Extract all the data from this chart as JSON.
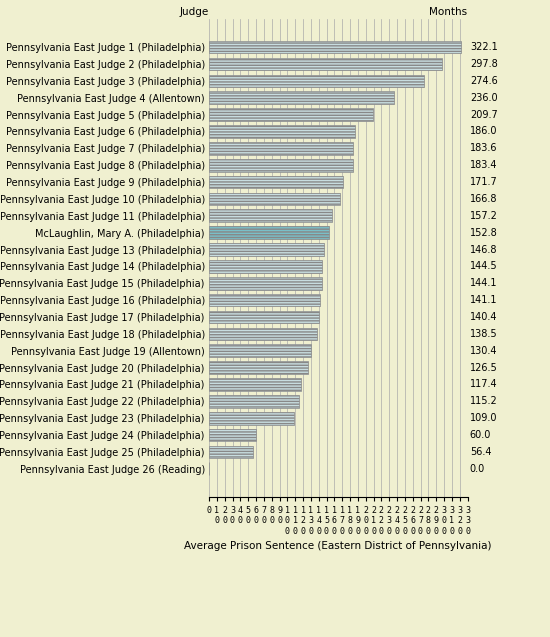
{
  "judges": [
    "Pennsylvania East Judge 1 (Philadelphia)",
    "Pennsylvania East Judge 2 (Philadelphia)",
    "Pennsylvania East Judge 3 (Philadelphia)",
    "Pennsylvania East Judge 4 (Allentown)",
    "Pennsylvania East Judge 5 (Philadelphia)",
    "Pennsylvania East Judge 6 (Philadelphia)",
    "Pennsylvania East Judge 7 (Philadelphia)",
    "Pennsylvania East Judge 8 (Philadelphia)",
    "Pennsylvania East Judge 9 (Philadelphia)",
    "Pennsylvania East Judge 10 (Philadelphia)",
    "Pennsylvania East Judge 11 (Philadelphia)",
    "McLaughlin, Mary A. (Philadelphia)",
    "Pennsylvania East Judge 13 (Philadelphia)",
    "Pennsylvania East Judge 14 (Philadelphia)",
    "Pennsylvania East Judge 15 (Philadelphia)",
    "Pennsylvania East Judge 16 (Philadelphia)",
    "Pennsylvania East Judge 17 (Philadelphia)",
    "Pennsylvania East Judge 18 (Philadelphia)",
    "Pennsylvania East Judge 19 (Allentown)",
    "Pennsylvania East Judge 20 (Philadelphia)",
    "Pennsylvania East Judge 21 (Philadelphia)",
    "Pennsylvania East Judge 22 (Philadelphia)",
    "Pennsylvania East Judge 23 (Philadelphia)",
    "Pennsylvania East Judge 24 (Philadelphia)",
    "Pennsylvania East Judge 25 (Philadelphia)",
    "Pennsylvania East Judge 26 (Reading)"
  ],
  "values": [
    322.1,
    297.8,
    274.6,
    236.0,
    209.7,
    186.0,
    183.6,
    183.4,
    171.7,
    166.8,
    157.2,
    152.8,
    146.8,
    144.5,
    144.1,
    141.1,
    140.4,
    138.5,
    130.4,
    126.5,
    117.4,
    115.2,
    109.0,
    60.0,
    56.4,
    0.0
  ],
  "highlight_index": 11,
  "bar_color_normal": "#c8dde0",
  "bar_color_highlight": "#7abfc8",
  "bar_edge_color": "#888888",
  "background_color": "#f0f0d0",
  "title_judge": "Judge",
  "title_months": "Months",
  "xlabel": "Average Prison Sentence (Eastern District of Pennsylvania)",
  "xlim": [
    0,
    330
  ],
  "tick_step": 10,
  "figsize": [
    5.5,
    6.37
  ],
  "dpi": 100
}
